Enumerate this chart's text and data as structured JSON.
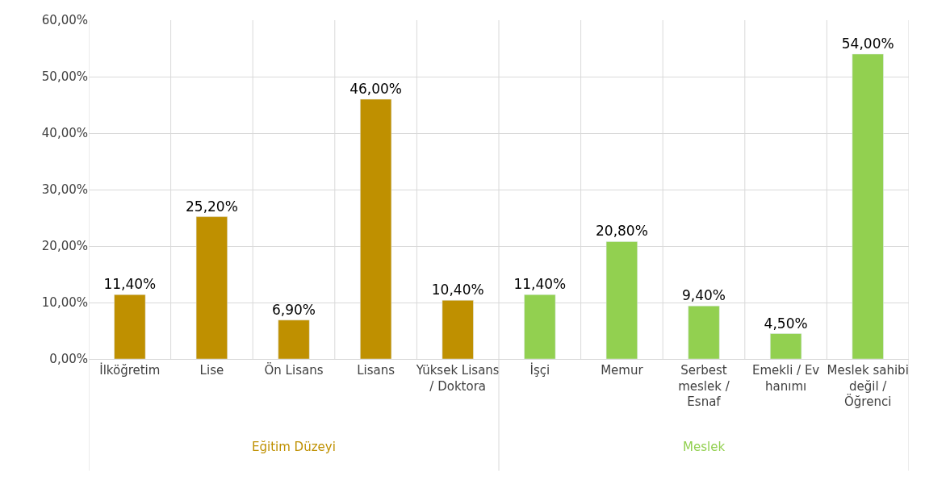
{
  "chart_data": {
    "type": "bar",
    "categories": [
      "İlköğretim",
      "Lise",
      "Ön Lisans",
      "Lisans",
      "Yüksek Lisans / Doktora",
      "İşçi",
      "Memur",
      "Serbest meslek / Esnaf",
      "Emekli / Ev hanımı",
      "Meslek sahibi değil / Öğrenci"
    ],
    "series": [
      {
        "name": "Eğitim Düzeyi",
        "color": "#bf9000",
        "values": [
          11.4,
          25.2,
          6.9,
          46.0,
          10.4,
          null,
          null,
          null,
          null,
          null
        ],
        "value_labels": [
          "11,40%",
          "25,20%",
          "6,90%",
          "46,00%",
          "10,40%",
          null,
          null,
          null,
          null,
          null
        ]
      },
      {
        "name": "Meslek",
        "color": "#92d050",
        "values": [
          null,
          null,
          null,
          null,
          null,
          11.4,
          20.8,
          9.4,
          4.5,
          54.0
        ],
        "value_labels": [
          null,
          null,
          null,
          null,
          null,
          "11,40%",
          "20,80%",
          "9,40%",
          "4,50%",
          "54,00%"
        ]
      }
    ],
    "ylim": [
      0,
      60
    ],
    "yticks": [
      {
        "value": 0,
        "label": "0,00%"
      },
      {
        "value": 10,
        "label": "10,00%"
      },
      {
        "value": 20,
        "label": "20,00%"
      },
      {
        "value": 30,
        "label": "30,00%"
      },
      {
        "value": 40,
        "label": "40,00%"
      },
      {
        "value": 50,
        "label": "50,00%"
      },
      {
        "value": 60,
        "label": "60,00%"
      }
    ],
    "grid": true,
    "legend": false
  }
}
